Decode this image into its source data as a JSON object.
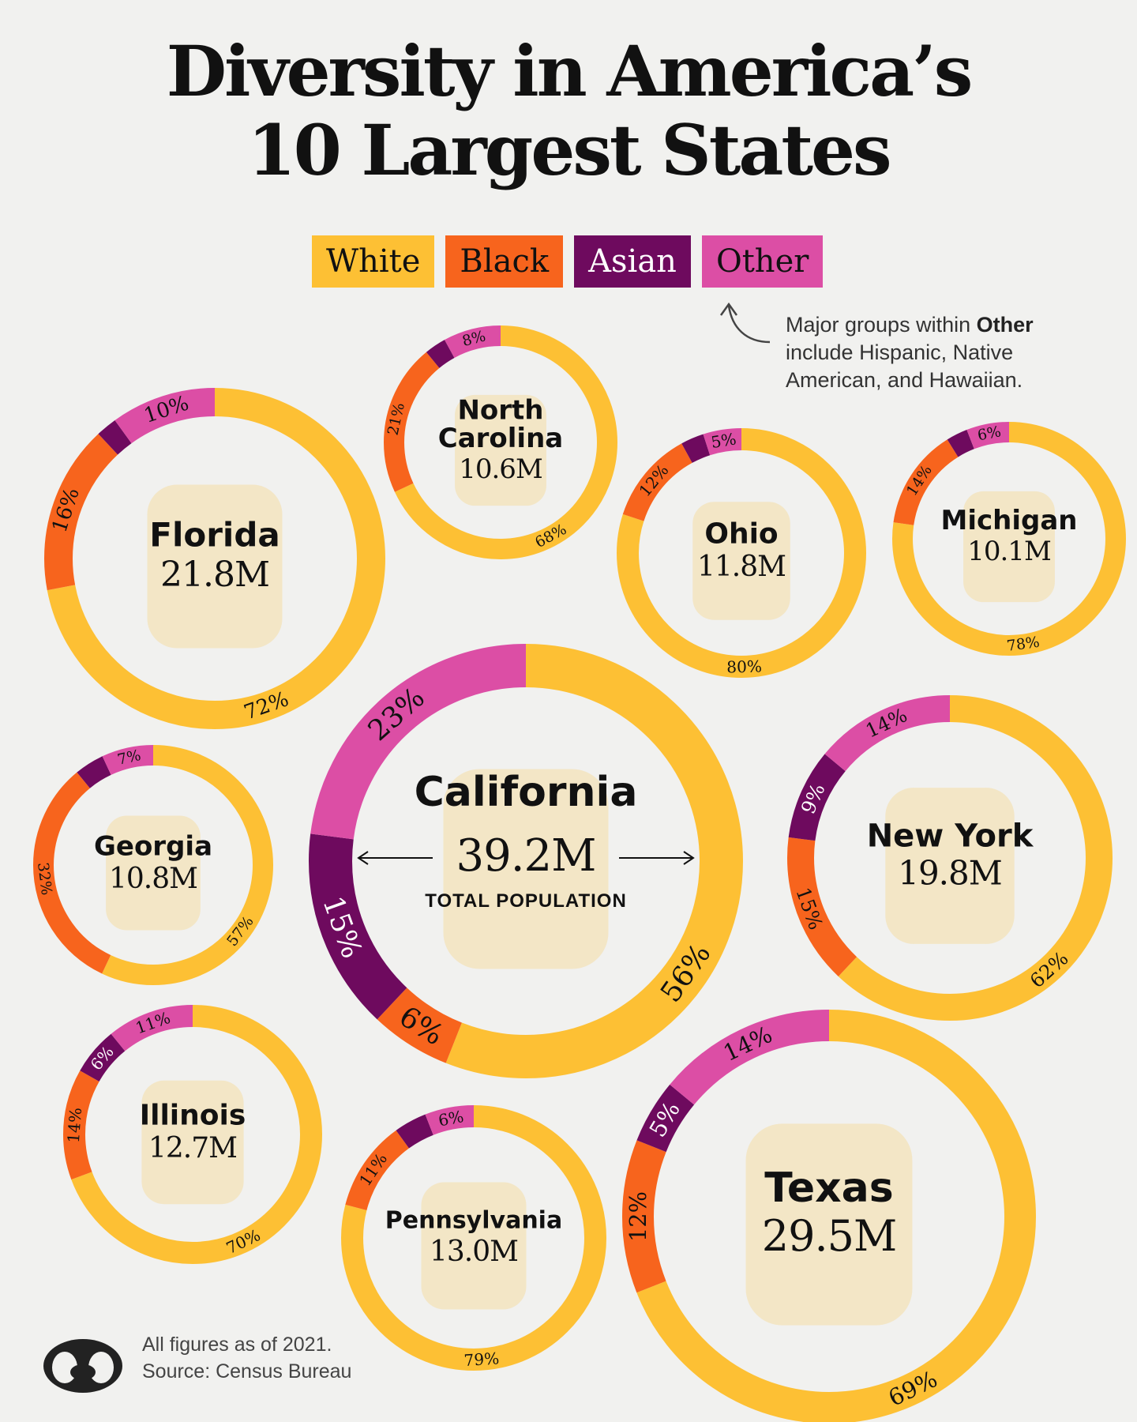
{
  "title_line1": "Diversity in America’s",
  "title_line2": "10 Largest States",
  "legend": [
    {
      "label": "White",
      "color": "#fdc034"
    },
    {
      "label": "Black",
      "color": "#f7641d"
    },
    {
      "label": "Asian",
      "color": "#6e0a5e"
    },
    {
      "label": "Other",
      "color": "#dc4ea5"
    }
  ],
  "note": {
    "prefix": "Major groups within ",
    "bold": "Other",
    "suffix": " include Hispanic, Native American, and Hawaiian."
  },
  "footer": {
    "line1": "All figures as of 2021.",
    "line2": "Source: Census Bureau"
  },
  "chart_data": {
    "type": "donut",
    "categories": [
      "White",
      "Black",
      "Asian",
      "Other"
    ],
    "total_label": "TOTAL POPULATION",
    "states": [
      {
        "name": "California",
        "population": "39.2M",
        "values": [
          56,
          6,
          15,
          23
        ],
        "labels": [
          "56%",
          "6%",
          "15%",
          "23%"
        ]
      },
      {
        "name": "Texas",
        "population": "29.5M",
        "values": [
          69,
          12,
          5,
          14
        ],
        "labels": [
          "69%",
          "12%",
          "5%",
          "14%"
        ]
      },
      {
        "name": "Florida",
        "population": "21.8M",
        "values": [
          72,
          16,
          2,
          10
        ],
        "labels": [
          "72%",
          "16%",
          "",
          "10%"
        ]
      },
      {
        "name": "New York",
        "population": "19.8M",
        "values": [
          62,
          15,
          9,
          14
        ],
        "labels": [
          "62%",
          "15%",
          "9%",
          "14%"
        ]
      },
      {
        "name": "Pennsylvania",
        "population": "13.0M",
        "values": [
          79,
          11,
          4,
          6
        ],
        "labels": [
          "79%",
          "11%",
          "",
          "6%"
        ]
      },
      {
        "name": "Illinois",
        "population": "12.7M",
        "values": [
          70,
          14,
          6,
          11
        ],
        "labels": [
          "70%",
          "14%",
          "6%",
          "11%"
        ]
      },
      {
        "name": "Ohio",
        "population": "11.8M",
        "values": [
          80,
          12,
          3,
          5
        ],
        "labels": [
          "80%",
          "12%",
          "",
          "5%"
        ]
      },
      {
        "name": "Georgia",
        "population": "10.8M",
        "values": [
          57,
          32,
          4,
          7
        ],
        "labels": [
          "57%",
          "32%",
          "",
          "7%"
        ]
      },
      {
        "name": "North Carolina",
        "population": "10.6M",
        "values": [
          68,
          21,
          3,
          8
        ],
        "labels": [
          "68%",
          "21%",
          "",
          "8%"
        ]
      },
      {
        "name": "Michigan",
        "population": "10.1M",
        "values": [
          78,
          14,
          3,
          6
        ],
        "labels": [
          "78%",
          "14%",
          "",
          "6%"
        ]
      }
    ]
  }
}
